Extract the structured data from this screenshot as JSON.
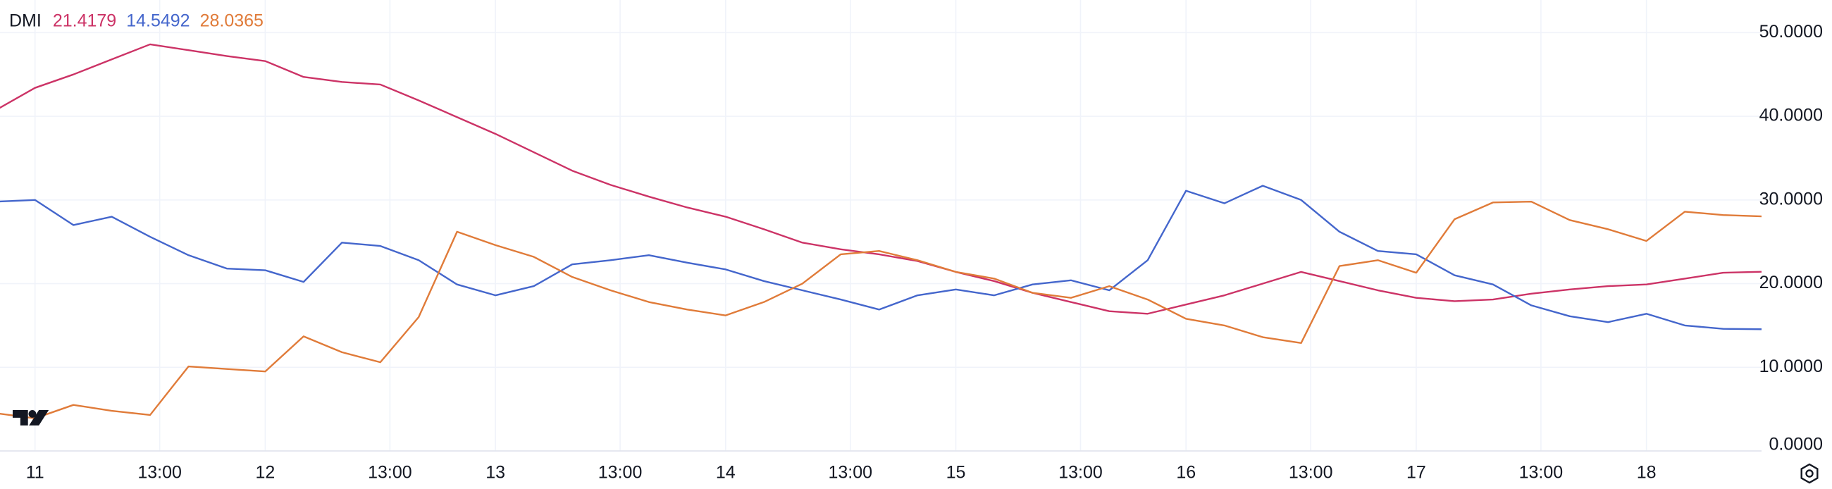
{
  "chart_data": {
    "type": "line",
    "title": "DMI",
    "x": [
      -4,
      0,
      4,
      8,
      12,
      16,
      20,
      24,
      28,
      32,
      36,
      40,
      44,
      48,
      52,
      56,
      60,
      64,
      68,
      72,
      76,
      80,
      84,
      88,
      92,
      96,
      100,
      104,
      108,
      112,
      116,
      120,
      124,
      128,
      132,
      136,
      140,
      144,
      148,
      152,
      156,
      160,
      164,
      168,
      172,
      176,
      180
    ],
    "series": [
      {
        "color": "#cc3366",
        "values": [
          40.8,
          43.4,
          45.0,
          46.8,
          48.6,
          47.9,
          47.2,
          46.6,
          44.7,
          44.1,
          43.8,
          41.9,
          39.9,
          37.9,
          35.7,
          33.5,
          31.8,
          30.4,
          29.1,
          28.0,
          26.5,
          24.9,
          24.1,
          23.5,
          22.7,
          21.4,
          20.3,
          18.9,
          17.8,
          16.7,
          16.4,
          17.5,
          18.6,
          20.0,
          21.4,
          20.3,
          19.2,
          18.3,
          17.9,
          18.1,
          18.8,
          19.3,
          19.7,
          19.9,
          20.6,
          21.3,
          21.4179
        ]
      },
      {
        "color": "#4466cc",
        "values": [
          29.8,
          30.0,
          27.0,
          28.0,
          25.6,
          23.4,
          21.8,
          21.6,
          20.2,
          24.9,
          24.5,
          22.8,
          19.9,
          18.6,
          19.7,
          22.3,
          22.8,
          23.4,
          22.5,
          21.7,
          20.3,
          19.2,
          18.1,
          16.9,
          18.6,
          19.3,
          18.6,
          19.9,
          20.4,
          19.2,
          22.8,
          31.1,
          29.6,
          31.7,
          30.0,
          26.2,
          23.9,
          23.5,
          21.0,
          19.9,
          17.4,
          16.1,
          15.4,
          16.4,
          15.0,
          14.6,
          14.5492
        ]
      },
      {
        "color": "#e07b39",
        "values": [
          4.5,
          3.9,
          5.5,
          4.8,
          4.3,
          10.1,
          9.8,
          9.5,
          13.7,
          11.8,
          10.6,
          16.0,
          26.2,
          24.6,
          23.2,
          20.8,
          19.2,
          17.8,
          16.9,
          16.2,
          17.8,
          20.0,
          23.5,
          23.9,
          22.8,
          21.4,
          20.6,
          18.9,
          18.3,
          19.7,
          18.1,
          15.8,
          15.0,
          13.6,
          12.9,
          22.1,
          22.8,
          21.3,
          27.7,
          29.7,
          29.8,
          27.6,
          26.5,
          25.1,
          28.6,
          28.2,
          28.0365
        ]
      }
    ],
    "xlim": [
      -3.65,
      180
    ],
    "xticks": [
      {
        "value": 0,
        "label": "11"
      },
      {
        "value": 13,
        "label": "13:00"
      },
      {
        "value": 24,
        "label": "12"
      },
      {
        "value": 37,
        "label": "13:00"
      },
      {
        "value": 48,
        "label": "13"
      },
      {
        "value": 61,
        "label": "13:00"
      },
      {
        "value": 72,
        "label": "14"
      },
      {
        "value": 85,
        "label": "13:00"
      },
      {
        "value": 96,
        "label": "15"
      },
      {
        "value": 109,
        "label": "13:00"
      },
      {
        "value": 120,
        "label": "16"
      },
      {
        "value": 133,
        "label": "13:00"
      },
      {
        "value": 144,
        "label": "17"
      },
      {
        "value": 157,
        "label": "13:00"
      },
      {
        "value": 168,
        "label": "18"
      }
    ],
    "ylim": [
      0,
      53.9
    ],
    "yticks": [
      {
        "value": 0,
        "label": "0.0000"
      },
      {
        "value": 10,
        "label": "10.0000"
      },
      {
        "value": 20,
        "label": "20.0000"
      },
      {
        "value": 30,
        "label": "30.0000"
      },
      {
        "value": 40,
        "label": "40.0000"
      },
      {
        "value": 50,
        "label": "50.0000"
      }
    ],
    "grid": true
  }
}
